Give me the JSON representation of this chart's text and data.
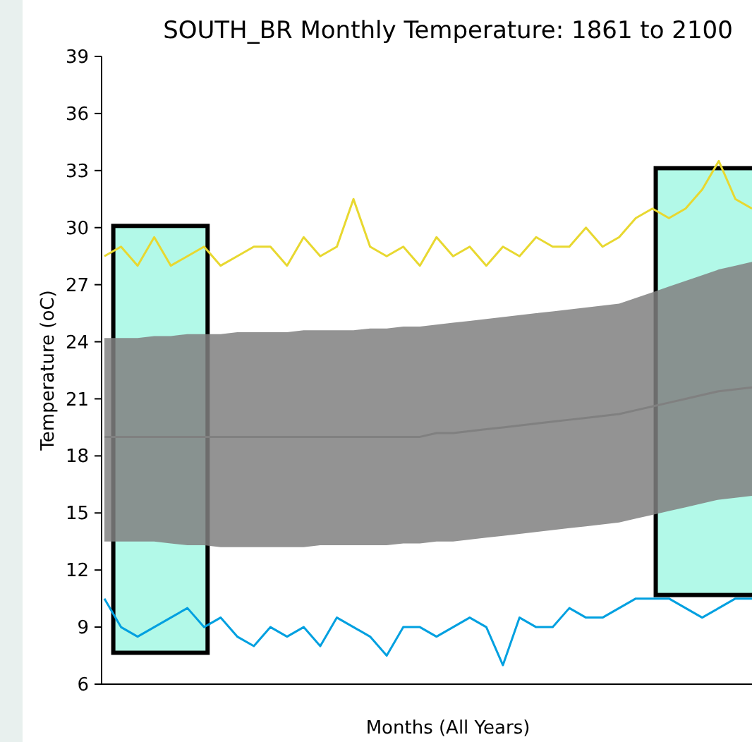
{
  "chart_data": {
    "type": "line",
    "title": "SOUTH_BR Monthly Temperature: 1861 to 2100",
    "xlabel": "Months (All Years)",
    "ylabel": "Temperature (oC)",
    "categories": [
      null,
      null,
      null,
      null,
      null,
      null,
      null,
      null,
      null,
      null,
      null,
      null,
      null,
      null,
      null,
      null,
      null,
      null,
      null,
      null,
      null,
      null,
      null,
      null,
      null,
      null,
      null,
      null,
      null,
      null,
      null,
      null,
      null,
      null,
      null,
      null,
      null,
      null,
      null,
      null
    ],
    "ylim": [
      6,
      39
    ],
    "yticks": [
      6,
      9,
      12,
      15,
      18,
      21,
      24,
      27,
      30,
      33,
      36,
      39
    ],
    "tick_labels": "y",
    "series": [
      {
        "color": "#808080",
        "values": [
          19,
          19,
          19,
          19,
          19,
          19,
          19,
          19,
          19,
          19,
          19,
          19,
          19,
          19,
          19,
          19,
          19,
          19,
          19,
          19,
          19.2,
          19.2,
          19.3,
          19.4,
          19.5,
          19.6,
          19.7,
          19.8,
          19.9,
          20,
          20.1,
          20.2,
          20.4,
          20.6,
          20.8,
          21,
          21.2,
          21.4,
          21.5,
          21.6
        ],
        "lower": [
          13.5,
          13.5,
          13.5,
          13.5,
          13.4,
          13.3,
          13.3,
          13.2,
          13.2,
          13.2,
          13.2,
          13.2,
          13.2,
          13.3,
          13.3,
          13.3,
          13.3,
          13.3,
          13.4,
          13.4,
          13.5,
          13.5,
          13.6,
          13.7,
          13.8,
          13.9,
          14,
          14.1,
          14.2,
          14.3,
          14.4,
          14.5,
          14.7,
          14.9,
          15.1,
          15.3,
          15.5,
          15.7,
          15.8,
          15.9
        ],
        "upper": [
          24.2,
          24.2,
          24.2,
          24.3,
          24.3,
          24.4,
          24.4,
          24.4,
          24.5,
          24.5,
          24.5,
          24.5,
          24.6,
          24.6,
          24.6,
          24.6,
          24.7,
          24.7,
          24.8,
          24.8,
          24.9,
          25,
          25.1,
          25.2,
          25.3,
          25.4,
          25.5,
          25.6,
          25.7,
          25.8,
          25.9,
          26,
          26.3,
          26.6,
          26.9,
          27.2,
          27.5,
          27.8,
          28,
          28.2
        ]
      },
      {
        "color": "#e8d830",
        "values": [
          28.5,
          29,
          28,
          29.5,
          28,
          28.5,
          29,
          28,
          28.5,
          29,
          29,
          28,
          29.5,
          28.5,
          29,
          31.5,
          29,
          28.5,
          29,
          28,
          29.5,
          28.5,
          29,
          28,
          29,
          28.5,
          29.5,
          29,
          29,
          30,
          29,
          29.5,
          30.5,
          31,
          30.5,
          31,
          32,
          33.5,
          31.5,
          31
        ]
      },
      {
        "color": "#00a0e0",
        "values": [
          10.5,
          9,
          8.5,
          9,
          9.5,
          10,
          9,
          9.5,
          8.5,
          8,
          9,
          8.5,
          9,
          8,
          9.5,
          9,
          8.5,
          7.5,
          9,
          9,
          8.5,
          9,
          9.5,
          9,
          7,
          9.5,
          9,
          9,
          10,
          9.5,
          9.5,
          10,
          10.5,
          10.5,
          10.5,
          10,
          9.5,
          10,
          10.5,
          10.5
        ]
      }
    ]
  }
}
